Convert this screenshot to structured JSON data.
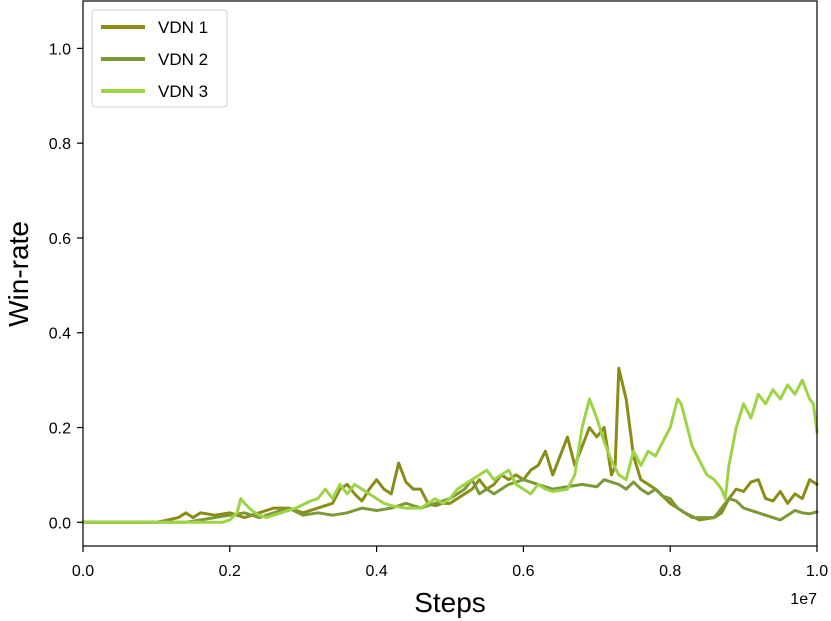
{
  "chart_data": {
    "type": "line",
    "title": "",
    "xlabel": "Steps",
    "ylabel": "Win-rate",
    "x_offset_label": "1e7",
    "xlim": [
      0.0,
      1.0
    ],
    "ylim": [
      -0.05,
      1.1
    ],
    "xticks": [
      "0.0",
      "0.2",
      "0.4",
      "0.6",
      "0.8",
      "1.0"
    ],
    "yticks": [
      "0.0",
      "0.2",
      "0.4",
      "0.6",
      "0.8",
      "1.0"
    ],
    "legend_position": "top-left",
    "grid": false,
    "series": [
      {
        "name": "VDN 1",
        "color": "#8b8b17",
        "points": [
          [
            0,
            0
          ],
          [
            0.1,
            0
          ],
          [
            0.11,
            0.003
          ],
          [
            0.13,
            0.01
          ],
          [
            0.14,
            0.02
          ],
          [
            0.15,
            0.01
          ],
          [
            0.16,
            0.02
          ],
          [
            0.18,
            0.015
          ],
          [
            0.2,
            0.02
          ],
          [
            0.22,
            0.01
          ],
          [
            0.24,
            0.02
          ],
          [
            0.26,
            0.03
          ],
          [
            0.28,
            0.03
          ],
          [
            0.3,
            0.02
          ],
          [
            0.32,
            0.03
          ],
          [
            0.34,
            0.04
          ],
          [
            0.35,
            0.07
          ],
          [
            0.36,
            0.08
          ],
          [
            0.37,
            0.06
          ],
          [
            0.38,
            0.045
          ],
          [
            0.39,
            0.07
          ],
          [
            0.4,
            0.09
          ],
          [
            0.41,
            0.07
          ],
          [
            0.42,
            0.06
          ],
          [
            0.43,
            0.125
          ],
          [
            0.44,
            0.085
          ],
          [
            0.45,
            0.07
          ],
          [
            0.46,
            0.07
          ],
          [
            0.47,
            0.04
          ],
          [
            0.48,
            0.035
          ],
          [
            0.49,
            0.04
          ],
          [
            0.5,
            0.04
          ],
          [
            0.51,
            0.05
          ],
          [
            0.52,
            0.06
          ],
          [
            0.53,
            0.07
          ],
          [
            0.54,
            0.09
          ],
          [
            0.55,
            0.07
          ],
          [
            0.56,
            0.08
          ],
          [
            0.57,
            0.1
          ],
          [
            0.58,
            0.09
          ],
          [
            0.59,
            0.1
          ],
          [
            0.6,
            0.09
          ],
          [
            0.61,
            0.11
          ],
          [
            0.62,
            0.12
          ],
          [
            0.63,
            0.15
          ],
          [
            0.64,
            0.1
          ],
          [
            0.65,
            0.14
          ],
          [
            0.66,
            0.18
          ],
          [
            0.67,
            0.12
          ],
          [
            0.68,
            0.16
          ],
          [
            0.69,
            0.2
          ],
          [
            0.7,
            0.18
          ],
          [
            0.71,
            0.2
          ],
          [
            0.72,
            0.1
          ],
          [
            0.725,
            0.12
          ],
          [
            0.73,
            0.325
          ],
          [
            0.74,
            0.26
          ],
          [
            0.75,
            0.14
          ],
          [
            0.76,
            0.09
          ],
          [
            0.78,
            0.07
          ],
          [
            0.8,
            0.04
          ],
          [
            0.82,
            0.02
          ],
          [
            0.84,
            0.005
          ],
          [
            0.86,
            0.01
          ],
          [
            0.87,
            0.02
          ],
          [
            0.88,
            0.05
          ],
          [
            0.89,
            0.07
          ],
          [
            0.9,
            0.065
          ],
          [
            0.91,
            0.085
          ],
          [
            0.92,
            0.09
          ],
          [
            0.93,
            0.05
          ],
          [
            0.94,
            0.045
          ],
          [
            0.95,
            0.065
          ],
          [
            0.96,
            0.04
          ],
          [
            0.97,
            0.06
          ],
          [
            0.98,
            0.05
          ],
          [
            0.99,
            0.09
          ],
          [
            1.0,
            0.08
          ]
        ]
      },
      {
        "name": "VDN 2",
        "color": "#7b9a36",
        "points": [
          [
            0,
            0
          ],
          [
            0.14,
            0
          ],
          [
            0.16,
            0.005
          ],
          [
            0.18,
            0.01
          ],
          [
            0.2,
            0.015
          ],
          [
            0.22,
            0.02
          ],
          [
            0.24,
            0.01
          ],
          [
            0.26,
            0.02
          ],
          [
            0.28,
            0.03
          ],
          [
            0.3,
            0.015
          ],
          [
            0.32,
            0.02
          ],
          [
            0.34,
            0.015
          ],
          [
            0.36,
            0.02
          ],
          [
            0.38,
            0.03
          ],
          [
            0.4,
            0.025
          ],
          [
            0.42,
            0.03
          ],
          [
            0.44,
            0.04
          ],
          [
            0.46,
            0.03
          ],
          [
            0.48,
            0.04
          ],
          [
            0.5,
            0.05
          ],
          [
            0.52,
            0.07
          ],
          [
            0.53,
            0.09
          ],
          [
            0.54,
            0.06
          ],
          [
            0.55,
            0.07
          ],
          [
            0.56,
            0.06
          ],
          [
            0.57,
            0.07
          ],
          [
            0.58,
            0.08
          ],
          [
            0.6,
            0.09
          ],
          [
            0.62,
            0.08
          ],
          [
            0.64,
            0.07
          ],
          [
            0.66,
            0.075
          ],
          [
            0.68,
            0.08
          ],
          [
            0.7,
            0.075
          ],
          [
            0.71,
            0.09
          ],
          [
            0.72,
            0.085
          ],
          [
            0.73,
            0.08
          ],
          [
            0.74,
            0.07
          ],
          [
            0.75,
            0.085
          ],
          [
            0.76,
            0.07
          ],
          [
            0.77,
            0.06
          ],
          [
            0.78,
            0.07
          ],
          [
            0.79,
            0.055
          ],
          [
            0.8,
            0.05
          ],
          [
            0.81,
            0.03
          ],
          [
            0.82,
            0.02
          ],
          [
            0.83,
            0.01
          ],
          [
            0.84,
            0.01
          ],
          [
            0.86,
            0.01
          ],
          [
            0.87,
            0.03
          ],
          [
            0.88,
            0.05
          ],
          [
            0.89,
            0.045
          ],
          [
            0.9,
            0.03
          ],
          [
            0.91,
            0.025
          ],
          [
            0.92,
            0.02
          ],
          [
            0.93,
            0.015
          ],
          [
            0.94,
            0.01
          ],
          [
            0.95,
            0.005
          ],
          [
            0.96,
            0.015
          ],
          [
            0.97,
            0.025
          ],
          [
            0.98,
            0.02
          ],
          [
            0.99,
            0.018
          ],
          [
            1.0,
            0.022
          ]
        ]
      },
      {
        "name": "VDN 3",
        "color": "#9dd446",
        "points": [
          [
            0,
            0
          ],
          [
            0.19,
            0
          ],
          [
            0.2,
            0.005
          ],
          [
            0.21,
            0.02
          ],
          [
            0.215,
            0.05
          ],
          [
            0.22,
            0.04
          ],
          [
            0.23,
            0.025
          ],
          [
            0.24,
            0.015
          ],
          [
            0.25,
            0.01
          ],
          [
            0.27,
            0.02
          ],
          [
            0.29,
            0.03
          ],
          [
            0.31,
            0.045
          ],
          [
            0.32,
            0.05
          ],
          [
            0.33,
            0.07
          ],
          [
            0.34,
            0.05
          ],
          [
            0.35,
            0.08
          ],
          [
            0.36,
            0.06
          ],
          [
            0.37,
            0.08
          ],
          [
            0.38,
            0.07
          ],
          [
            0.39,
            0.06
          ],
          [
            0.4,
            0.05
          ],
          [
            0.41,
            0.04
          ],
          [
            0.42,
            0.035
          ],
          [
            0.44,
            0.03
          ],
          [
            0.46,
            0.03
          ],
          [
            0.48,
            0.05
          ],
          [
            0.49,
            0.04
          ],
          [
            0.5,
            0.05
          ],
          [
            0.51,
            0.07
          ],
          [
            0.52,
            0.08
          ],
          [
            0.53,
            0.09
          ],
          [
            0.54,
            0.1
          ],
          [
            0.55,
            0.11
          ],
          [
            0.56,
            0.09
          ],
          [
            0.57,
            0.1
          ],
          [
            0.58,
            0.11
          ],
          [
            0.59,
            0.08
          ],
          [
            0.6,
            0.07
          ],
          [
            0.61,
            0.06
          ],
          [
            0.62,
            0.08
          ],
          [
            0.63,
            0.07
          ],
          [
            0.64,
            0.065
          ],
          [
            0.66,
            0.07
          ],
          [
            0.67,
            0.1
          ],
          [
            0.68,
            0.2
          ],
          [
            0.69,
            0.26
          ],
          [
            0.7,
            0.22
          ],
          [
            0.71,
            0.17
          ],
          [
            0.72,
            0.13
          ],
          [
            0.73,
            0.1
          ],
          [
            0.74,
            0.09
          ],
          [
            0.75,
            0.15
          ],
          [
            0.76,
            0.12
          ],
          [
            0.77,
            0.15
          ],
          [
            0.78,
            0.14
          ],
          [
            0.79,
            0.17
          ],
          [
            0.8,
            0.2
          ],
          [
            0.81,
            0.26
          ],
          [
            0.815,
            0.25
          ],
          [
            0.82,
            0.22
          ],
          [
            0.83,
            0.16
          ],
          [
            0.84,
            0.13
          ],
          [
            0.85,
            0.1
          ],
          [
            0.86,
            0.09
          ],
          [
            0.87,
            0.07
          ],
          [
            0.875,
            0.05
          ],
          [
            0.88,
            0.12
          ],
          [
            0.89,
            0.2
          ],
          [
            0.9,
            0.25
          ],
          [
            0.91,
            0.22
          ],
          [
            0.92,
            0.27
          ],
          [
            0.93,
            0.25
          ],
          [
            0.94,
            0.28
          ],
          [
            0.95,
            0.26
          ],
          [
            0.96,
            0.29
          ],
          [
            0.97,
            0.27
          ],
          [
            0.98,
            0.3
          ],
          [
            0.99,
            0.26
          ],
          [
            0.995,
            0.25
          ],
          [
            1.0,
            0.19
          ]
        ]
      }
    ]
  }
}
